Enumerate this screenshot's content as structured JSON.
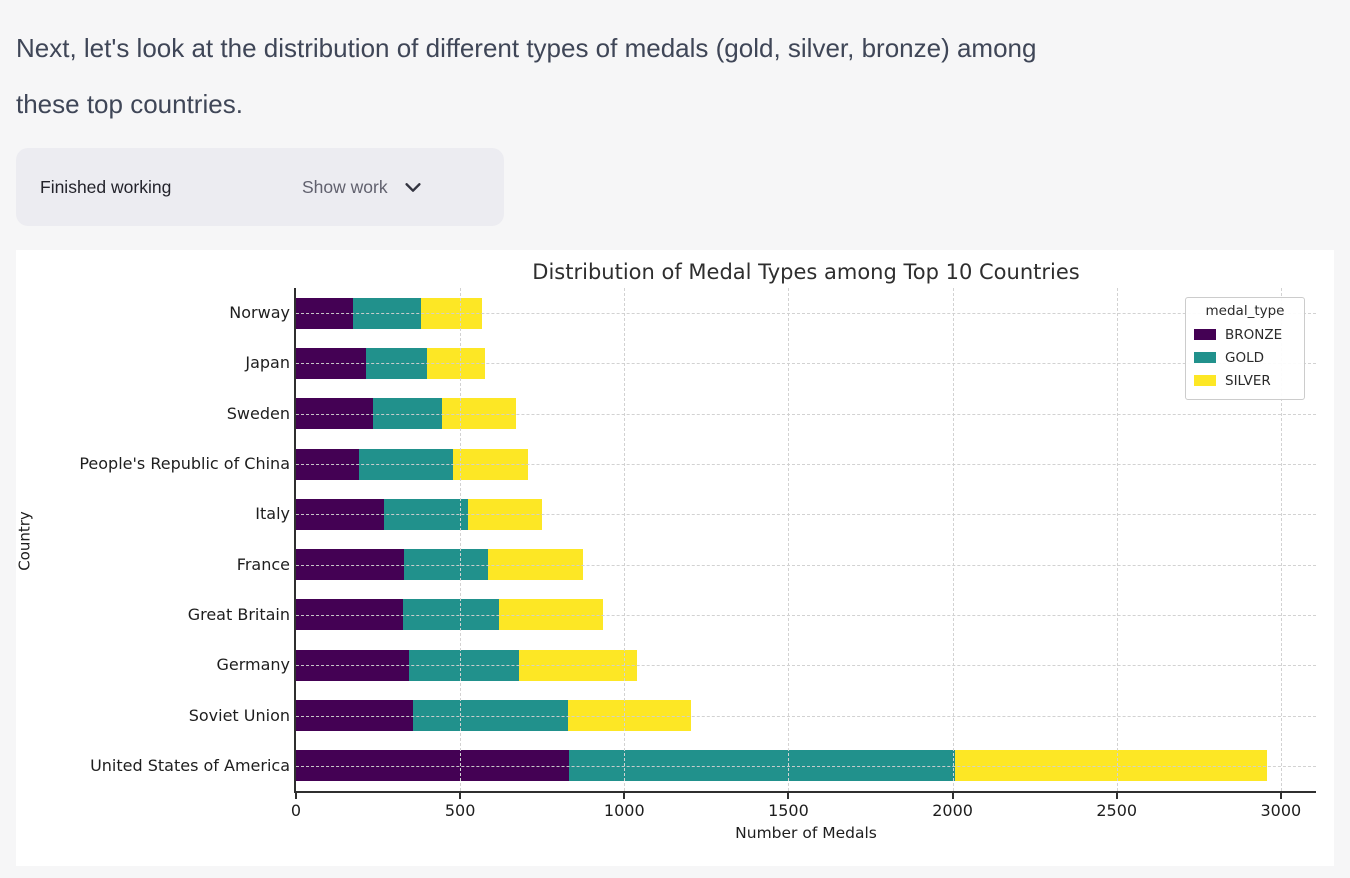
{
  "message": {
    "line1": "Next, let's look at the distribution of different types of medals (gold, silver, bronze) among",
    "line2": "these top countries."
  },
  "work_panel": {
    "status": "Finished working",
    "toggle_label": "Show work",
    "toggle_icon": "chevron-down"
  },
  "chart_data": {
    "type": "bar",
    "orientation": "horizontal",
    "stacked": true,
    "title": "Distribution of Medal Types among Top 10 Countries",
    "xlabel": "Number of Medals",
    "ylabel": "Country",
    "xlim": [
      0,
      3107
    ],
    "x_ticks": [
      0,
      500,
      1000,
      1500,
      2000,
      2500,
      3000
    ],
    "grid": "dashed",
    "legend_title": "medal_type",
    "legend_position": "upper right",
    "categories": [
      "Norway",
      "Japan",
      "Sweden",
      "People's Republic of China",
      "Italy",
      "France",
      "Great Britain",
      "Germany",
      "Soviet Union",
      "United States of America"
    ],
    "series": [
      {
        "name": "BRONZE",
        "color": "#440154",
        "values": [
          173,
          213,
          236,
          192,
          268,
          329,
          327,
          345,
          355,
          833
        ]
      },
      {
        "name": "GOLD",
        "color": "#21918c",
        "values": [
          208,
          186,
          209,
          285,
          256,
          256,
          291,
          335,
          473,
          1174
        ]
      },
      {
        "name": "SILVER",
        "color": "#fde725",
        "values": [
          185,
          178,
          224,
          230,
          226,
          288,
          318,
          360,
          376,
          952
        ]
      }
    ]
  }
}
